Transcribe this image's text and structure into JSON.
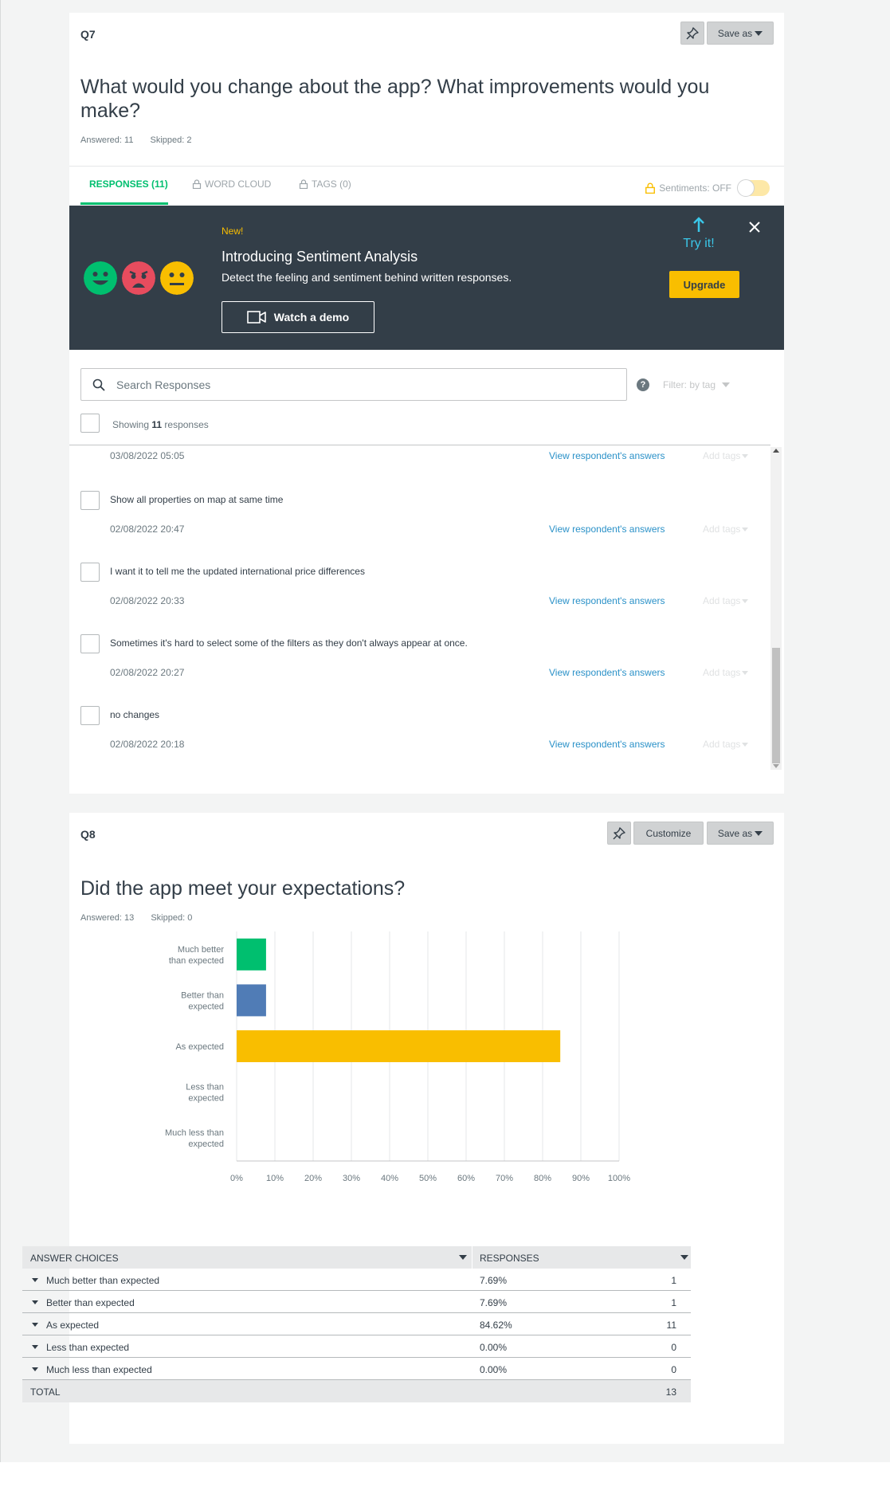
{
  "q7": {
    "number": "Q7",
    "pin_icon": "pin-icon",
    "save_as_label": "Save as",
    "title": "What would you change about the app? What improvements would you make?",
    "answered": "Answered: 11",
    "skipped": "Skipped: 2",
    "tabs": [
      {
        "label": "RESPONSES (11)",
        "active": true
      },
      {
        "label": "WORD CLOUD",
        "locked": true
      },
      {
        "label": "TAGS (0)",
        "locked": true
      }
    ],
    "sentiments_label": "Sentiments: OFF",
    "banner": {
      "new_label": "New!",
      "title": "Introducing Sentiment Analysis",
      "description": "Detect the feeling and sentiment behind written responses.",
      "demo_button": "Watch a demo",
      "try_it": "Try it!",
      "upgrade_button": "Upgrade",
      "faces": [
        "happy-face-icon",
        "sad-face-icon",
        "neutral-face-icon"
      ],
      "colors": {
        "background": "#333e48",
        "accent": "#f9be00",
        "try": "#3bc7e8",
        "happy": "#00bf6f",
        "sad": "#e74c5e",
        "neutral": "#f9be00"
      }
    },
    "search_placeholder": "Search Responses",
    "filter_label": "Filter: by tag",
    "showing_prefix": "Showing",
    "showing_count": "11",
    "showing_suffix": "responses",
    "view_link_label": "View respondent's answers",
    "add_tags_label": "Add tags",
    "responses": [
      {
        "text": "",
        "date": "03/08/2022 05:05"
      },
      {
        "text": "Show all properties on map at same time",
        "date": "02/08/2022 20:47"
      },
      {
        "text": "I want it to tell me the updated international price differences",
        "date": "02/08/2022 20:33"
      },
      {
        "text": "Sometimes it's hard to select some of the filters as they don't always appear at once.",
        "date": "02/08/2022 20:27"
      },
      {
        "text": "no changes",
        "date": "02/08/2022 20:18"
      }
    ]
  },
  "q8": {
    "number": "Q8",
    "customize_label": "Customize",
    "save_as_label": "Save as",
    "title": "Did the app meet your expectations?",
    "answered": "Answered: 13",
    "skipped": "Skipped: 0",
    "table": {
      "col_choices": "ANSWER CHOICES",
      "col_responses": "RESPONSES",
      "rows": [
        {
          "choice": "Much better than expected",
          "percent": "7.69%",
          "count": "1"
        },
        {
          "choice": "Better than expected",
          "percent": "7.69%",
          "count": "1"
        },
        {
          "choice": "As expected",
          "percent": "84.62%",
          "count": "11"
        },
        {
          "choice": "Less than expected",
          "percent": "0.00%",
          "count": "0"
        },
        {
          "choice": "Much less than expected",
          "percent": "0.00%",
          "count": "0"
        }
      ],
      "total_label": "TOTAL",
      "total_value": "13"
    }
  },
  "chart_data": {
    "type": "bar",
    "orientation": "horizontal",
    "categories": [
      "Much better than expected",
      "Better than expected",
      "As expected",
      "Less than expected",
      "Much less than expected"
    ],
    "category_labels": [
      [
        "Much better",
        "than expected"
      ],
      [
        "Better than",
        "expected"
      ],
      [
        "As expected"
      ],
      [
        "Less than",
        "expected"
      ],
      [
        "Much less than",
        "expected"
      ]
    ],
    "values": [
      7.69,
      7.69,
      84.62,
      0,
      0
    ],
    "colors": [
      "#00bf6f",
      "#507cb6",
      "#f9be00",
      "#6bc8cd",
      "#8c8c8c"
    ],
    "x_ticks": [
      "0%",
      "10%",
      "20%",
      "30%",
      "40%",
      "50%",
      "60%",
      "70%",
      "80%",
      "90%",
      "100%"
    ],
    "xlim": [
      0,
      100
    ],
    "grid": true
  }
}
